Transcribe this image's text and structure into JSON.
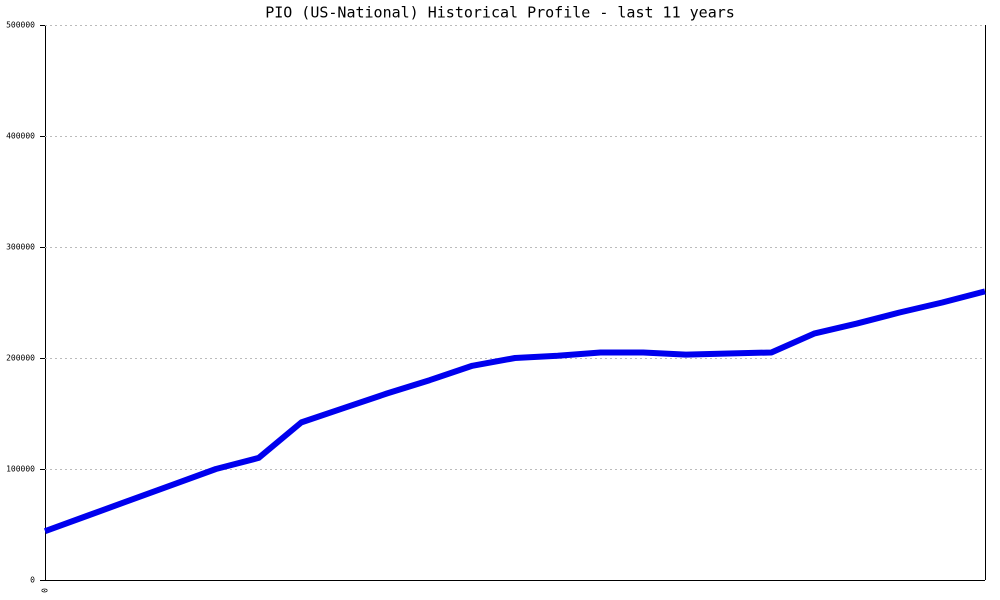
{
  "chart_data": {
    "type": "line",
    "title": "PIO (US-National) Historical Profile - last 11 years",
    "categories": [
      "0",
      null,
      null,
      null,
      null,
      null,
      null,
      null,
      null,
      null,
      null,
      null,
      null,
      null,
      null,
      null,
      null,
      null,
      null,
      null,
      null,
      null,
      null
    ],
    "series": [
      {
        "color": "#0000ee",
        "values": [
          44000,
          58000,
          72000,
          86000,
          100000,
          110000,
          142000,
          155000,
          168000,
          180000,
          193000,
          200000,
          202000,
          205000,
          205000,
          203000,
          204000,
          205000,
          222000,
          231000,
          241000,
          250000,
          260000
        ]
      }
    ],
    "ylim": [
      0,
      500000
    ],
    "yticks": [
      0,
      100000,
      200000,
      300000,
      400000,
      500000
    ],
    "grid": true
  }
}
